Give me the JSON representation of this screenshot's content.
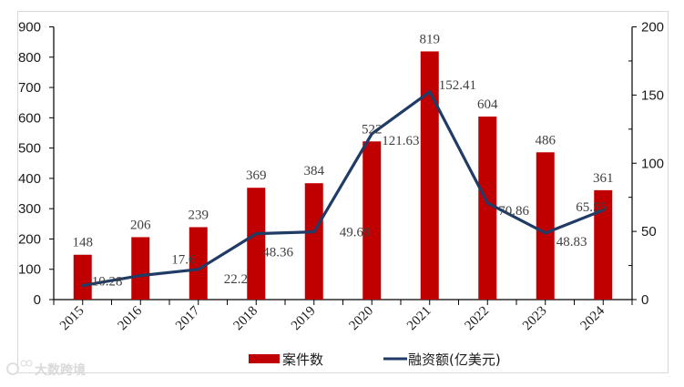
{
  "chart_data": {
    "type": "bar",
    "title": "",
    "xlabel": "",
    "ylabel": "",
    "categories": [
      "2015",
      "2016",
      "2017",
      "2018",
      "2019",
      "2020",
      "2021",
      "2022",
      "2023",
      "2024"
    ],
    "series": [
      {
        "name": "案件数",
        "type": "bar",
        "axis": "left",
        "color": "#C00000",
        "values": [
          148,
          206,
          239,
          369,
          384,
          522,
          819,
          604,
          486,
          361
        ]
      },
      {
        "name": "融资额(亿美元)",
        "type": "line",
        "axis": "right",
        "color": "#1F3B66",
        "values": [
          10.28,
          17.6,
          22.2,
          48.36,
          49.69,
          121.63,
          152.41,
          70.86,
          48.83,
          65.55
        ]
      }
    ],
    "ylim": [
      0,
      900
    ],
    "y_ticks": [
      0,
      100,
      200,
      300,
      400,
      500,
      600,
      700,
      800,
      900
    ],
    "y2lim": [
      0,
      200
    ],
    "y2_ticks": [
      0,
      50,
      100,
      150,
      200
    ],
    "y2_minor_ticks": [
      25,
      75,
      125,
      175
    ],
    "grid": false,
    "legend_position": "bottom",
    "x_label_rotation": -45
  },
  "legend": {
    "bar_label": "案件数",
    "line_label": "融资额(亿美元)"
  },
  "watermark": {
    "text": "大数跨境"
  }
}
